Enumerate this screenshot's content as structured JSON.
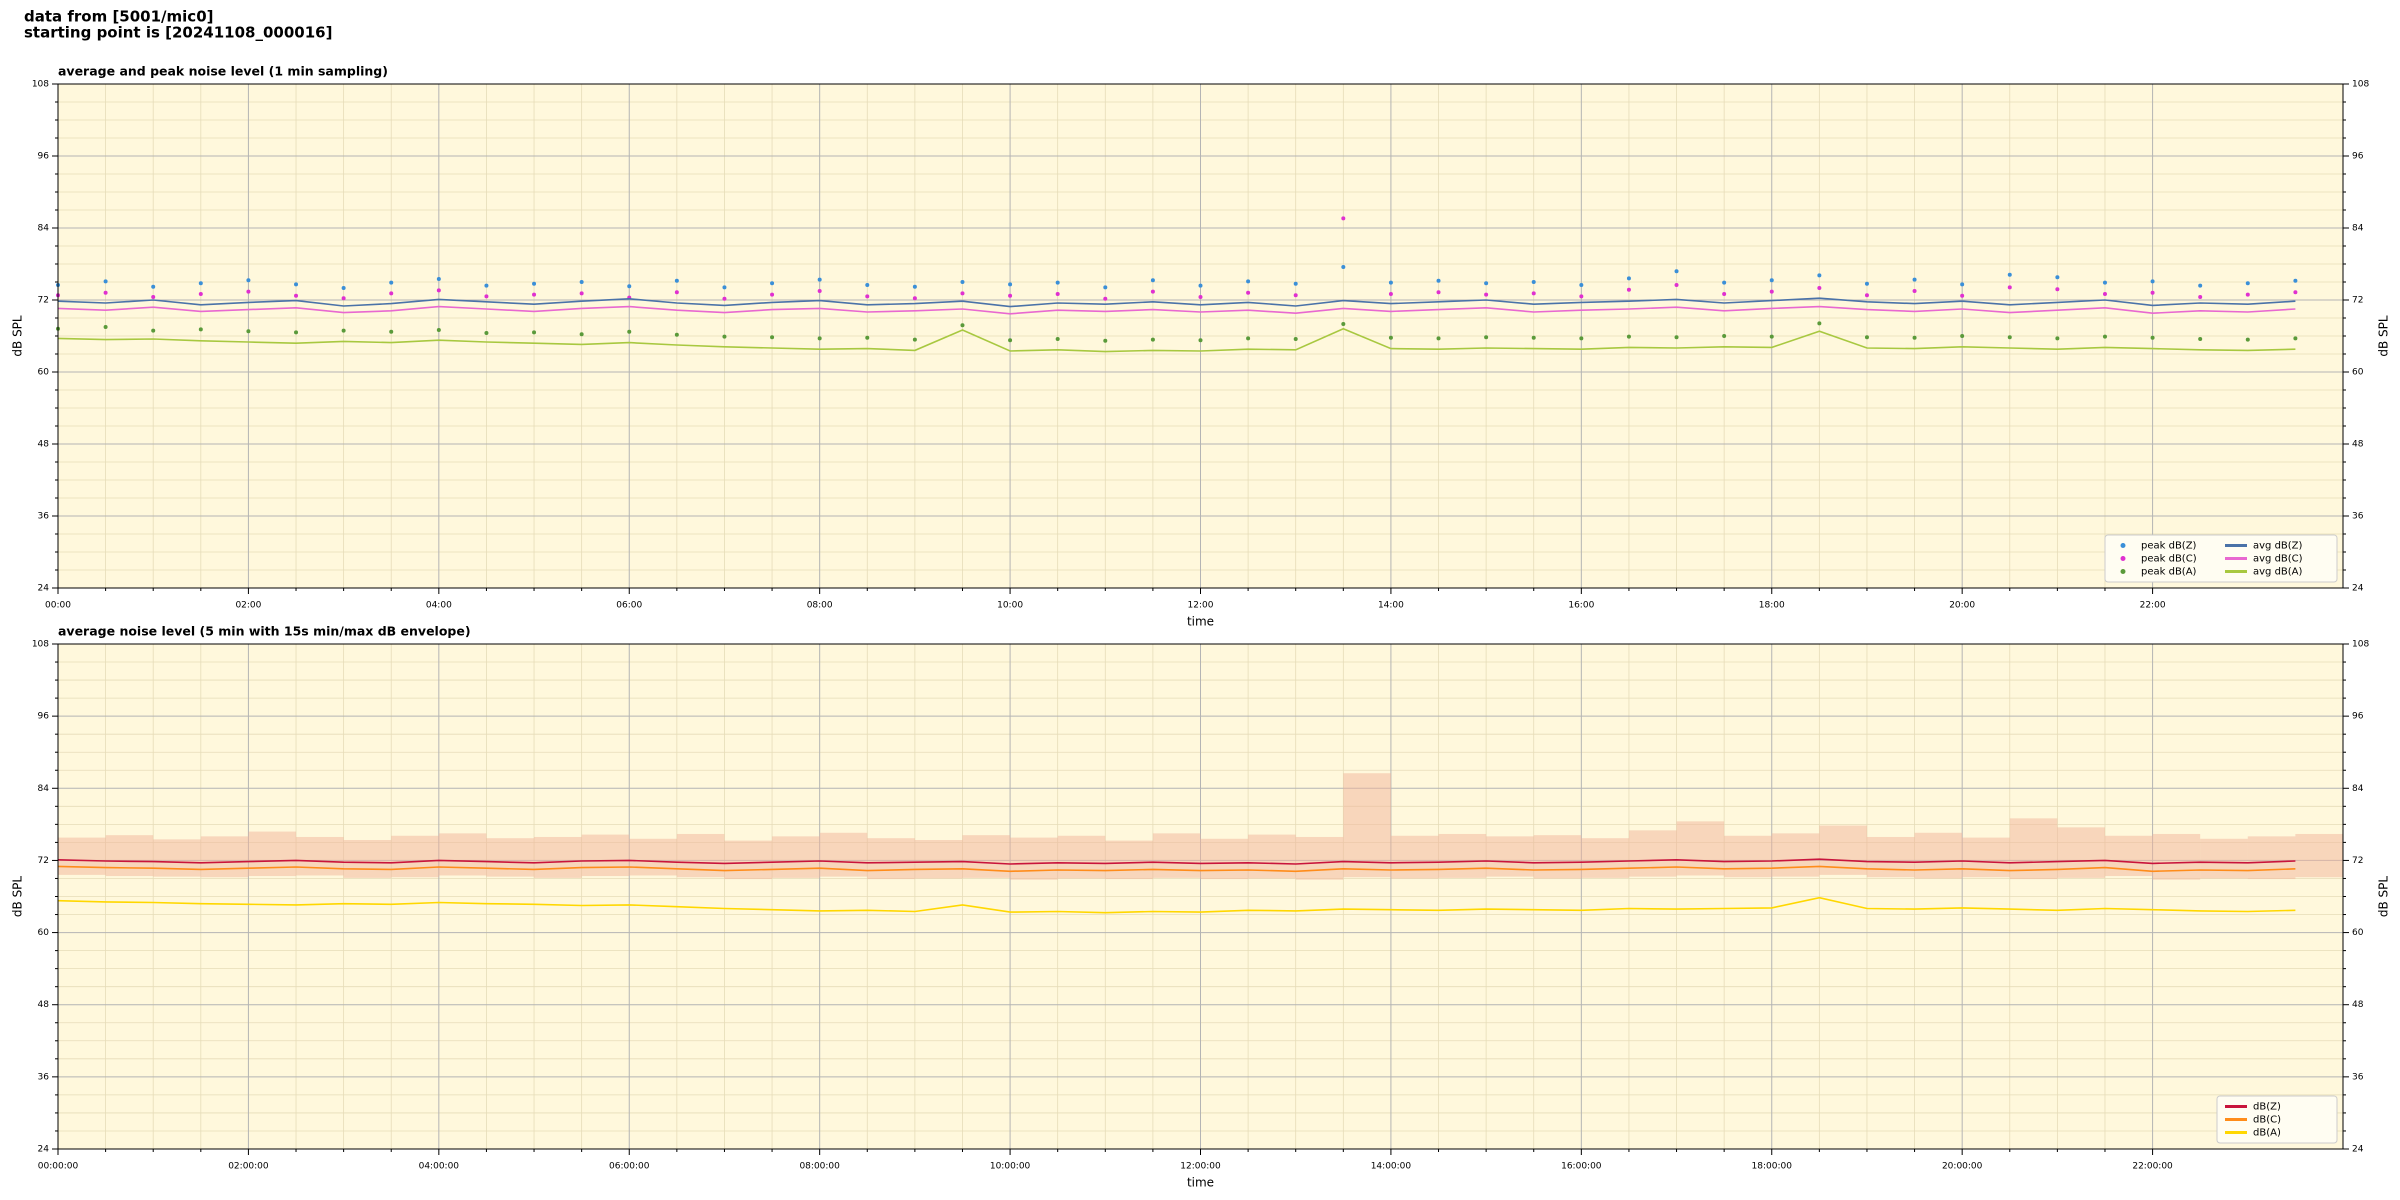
{
  "header": {
    "line1": "data from [5001/mic0]",
    "line2": "starting point is [20241108_000016]"
  },
  "chart_data": [
    {
      "type": "line",
      "title": "average and peak noise level (1 min sampling)",
      "xlabel": "time",
      "ylabel": "dB SPL",
      "facecolor": "#fff8dc",
      "grid": true,
      "legend": "lower right",
      "legend_columns": 2,
      "xlim": [
        0,
        24
      ],
      "ylim": [
        24,
        108
      ],
      "y2lim": [
        24,
        108
      ],
      "xticks": [
        {
          "value": 0,
          "label": "00:00"
        },
        {
          "value": 2,
          "label": "02:00"
        },
        {
          "value": 4,
          "label": "04:00"
        },
        {
          "value": 6,
          "label": "06:00"
        },
        {
          "value": 8,
          "label": "08:00"
        },
        {
          "value": 10,
          "label": "10:00"
        },
        {
          "value": 12,
          "label": "12:00"
        },
        {
          "value": 14,
          "label": "14:00"
        },
        {
          "value": 16,
          "label": "16:00"
        },
        {
          "value": 18,
          "label": "18:00"
        },
        {
          "value": 20,
          "label": "20:00"
        },
        {
          "value": 22,
          "label": "22:00"
        }
      ],
      "yticks": [
        24,
        36,
        48,
        60,
        72,
        84,
        96,
        108
      ],
      "y2ticks": [
        24,
        36,
        48,
        60,
        72,
        84,
        96,
        108
      ],
      "x": [
        0,
        0.5,
        1,
        1.5,
        2,
        2.5,
        3,
        3.5,
        4,
        4.5,
        5,
        5.5,
        6,
        6.5,
        7,
        7.5,
        8,
        8.5,
        9,
        9.5,
        10,
        10.5,
        11,
        11.5,
        12,
        12.5,
        13,
        13.5,
        14,
        14.5,
        15,
        15.5,
        16,
        16.5,
        17,
        17.5,
        18,
        18.5,
        19,
        19.5,
        20,
        20.5,
        21,
        21.5,
        22,
        22.5,
        23,
        23.5
      ],
      "series": [
        {
          "name": "peak dB(Z)",
          "style": "markers",
          "color": "#3a8fd8",
          "values": [
            74.5,
            75.1,
            74.2,
            74.8,
            75.3,
            74.6,
            74.0,
            74.9,
            75.5,
            74.4,
            74.7,
            75.0,
            74.3,
            75.2,
            74.1,
            74.8,
            75.4,
            74.5,
            74.2,
            75.0,
            74.6,
            74.9,
            74.1,
            75.3,
            74.4,
            75.1,
            74.7,
            77.5,
            74.9,
            75.2,
            74.8,
            75.0,
            74.5,
            75.6,
            76.8,
            74.9,
            75.3,
            76.1,
            74.7,
            75.4,
            74.6,
            76.2,
            75.8,
            74.9,
            75.1,
            74.4,
            74.8,
            75.2
          ]
        },
        {
          "name": "peak dB(C)",
          "style": "markers",
          "color": "#e030d0",
          "values": [
            72.8,
            73.2,
            72.5,
            73.0,
            73.4,
            72.7,
            72.3,
            73.1,
            73.6,
            72.6,
            72.9,
            73.1,
            72.4,
            73.3,
            72.2,
            72.9,
            73.5,
            72.6,
            72.3,
            73.1,
            72.7,
            73.0,
            72.2,
            73.4,
            72.5,
            73.2,
            72.8,
            85.6,
            73.0,
            73.3,
            72.9,
            73.1,
            72.6,
            73.7,
            74.5,
            73.0,
            73.4,
            74.0,
            72.8,
            73.5,
            72.7,
            74.1,
            73.8,
            73.0,
            73.2,
            72.5,
            72.9,
            73.3
          ]
        },
        {
          "name": "peak dB(A)",
          "style": "markers",
          "color": "#5a9a3a",
          "values": [
            67.2,
            67.5,
            66.9,
            67.1,
            66.8,
            66.6,
            66.9,
            66.7,
            67.0,
            66.5,
            66.6,
            66.3,
            66.7,
            66.2,
            65.9,
            65.8,
            65.6,
            65.7,
            65.4,
            67.8,
            65.3,
            65.5,
            65.2,
            65.4,
            65.3,
            65.6,
            65.5,
            68.0,
            65.7,
            65.6,
            65.8,
            65.7,
            65.6,
            65.9,
            65.8,
            66.0,
            65.9,
            68.1,
            65.8,
            65.7,
            66.0,
            65.8,
            65.6,
            65.9,
            65.7,
            65.5,
            65.4,
            65.6
          ]
        },
        {
          "name": "avg dB(Z)",
          "style": "line",
          "color": "#4a72a8",
          "values": [
            71.8,
            71.5,
            72.0,
            71.2,
            71.6,
            71.9,
            71.0,
            71.4,
            72.1,
            71.7,
            71.3,
            71.8,
            72.2,
            71.5,
            71.1,
            71.6,
            71.9,
            71.2,
            71.4,
            71.8,
            70.9,
            71.5,
            71.3,
            71.7,
            71.2,
            71.6,
            71.0,
            71.9,
            71.4,
            71.7,
            72.0,
            71.3,
            71.6,
            71.8,
            72.1,
            71.5,
            71.9,
            72.3,
            71.7,
            71.4,
            71.8,
            71.2,
            71.6,
            72.0,
            71.1,
            71.5,
            71.3,
            71.8
          ]
        },
        {
          "name": "avg dB(C)",
          "style": "line",
          "color": "#e868d0",
          "values": [
            70.6,
            70.3,
            70.8,
            70.1,
            70.4,
            70.7,
            69.9,
            70.2,
            70.9,
            70.5,
            70.1,
            70.6,
            70.9,
            70.3,
            69.9,
            70.4,
            70.6,
            70.0,
            70.2,
            70.5,
            69.7,
            70.3,
            70.1,
            70.4,
            70.0,
            70.3,
            69.8,
            70.6,
            70.1,
            70.4,
            70.7,
            70.0,
            70.3,
            70.5,
            70.8,
            70.2,
            70.6,
            70.9,
            70.4,
            70.1,
            70.5,
            69.9,
            70.3,
            70.7,
            69.8,
            70.2,
            70.0,
            70.5
          ]
        },
        {
          "name": "avg dB(A)",
          "style": "line",
          "color": "#a8c840",
          "values": [
            65.6,
            65.4,
            65.5,
            65.2,
            65.0,
            64.8,
            65.1,
            64.9,
            65.3,
            65.0,
            64.8,
            64.6,
            64.9,
            64.5,
            64.2,
            64.0,
            63.8,
            63.9,
            63.6,
            67.0,
            63.5,
            63.7,
            63.4,
            63.6,
            63.5,
            63.8,
            63.7,
            67.2,
            63.9,
            63.8,
            64.0,
            63.9,
            63.8,
            64.1,
            64.0,
            64.2,
            64.1,
            66.8,
            64.0,
            63.9,
            64.2,
            64.0,
            63.8,
            64.1,
            63.9,
            63.7,
            63.6,
            63.8
          ]
        }
      ]
    },
    {
      "type": "line",
      "title": "average noise level (5 min with 15s min/max dB envelope)",
      "xlabel": "time",
      "ylabel": "dB SPL",
      "facecolor": "#fff8dc",
      "grid": true,
      "legend": "lower right",
      "legend_columns": 1,
      "xlim": [
        0,
        24
      ],
      "ylim": [
        24,
        108
      ],
      "y2lim": [
        24,
        108
      ],
      "xticks": [
        {
          "value": 0,
          "label": "00:00:00"
        },
        {
          "value": 2,
          "label": "02:00:00"
        },
        {
          "value": 4,
          "label": "04:00:00"
        },
        {
          "value": 6,
          "label": "06:00:00"
        },
        {
          "value": 8,
          "label": "08:00:00"
        },
        {
          "value": 10,
          "label": "10:00:00"
        },
        {
          "value": 12,
          "label": "12:00:00"
        },
        {
          "value": 14,
          "label": "14:00:00"
        },
        {
          "value": 16,
          "label": "16:00:00"
        },
        {
          "value": 18,
          "label": "18:00:00"
        },
        {
          "value": 20,
          "label": "20:00:00"
        },
        {
          "value": 22,
          "label": "22:00:00"
        }
      ],
      "yticks": [
        24,
        36,
        48,
        60,
        72,
        84,
        96,
        108
      ],
      "y2ticks": [
        24,
        36,
        48,
        60,
        72,
        84,
        96,
        108
      ],
      "x": [
        0,
        0.5,
        1,
        1.5,
        2,
        2.5,
        3,
        3.5,
        4,
        4.5,
        5,
        5.5,
        6,
        6.5,
        7,
        7.5,
        8,
        8.5,
        9,
        9.5,
        10,
        10.5,
        11,
        11.5,
        12,
        12.5,
        13,
        13.5,
        14,
        14.5,
        15,
        15.5,
        16,
        16.5,
        17,
        17.5,
        18,
        18.5,
        19,
        19.5,
        20,
        20.5,
        21,
        21.5,
        22,
        22.5,
        23,
        23.5
      ],
      "envelope": {
        "color": "#f2b49a",
        "lower": [
          69.6,
          69.4,
          69.3,
          69.2,
          69.4,
          69.5,
          69.1,
          69.2,
          69.5,
          69.3,
          69.1,
          69.4,
          69.5,
          69.2,
          68.9,
          69.1,
          69.3,
          68.9,
          69.0,
          69.1,
          68.8,
          69.0,
          68.9,
          69.1,
          68.9,
          69.0,
          68.8,
          69.2,
          69.0,
          69.1,
          69.3,
          69.0,
          69.1,
          69.3,
          69.5,
          69.2,
          69.3,
          69.6,
          69.2,
          69.0,
          69.2,
          68.9,
          69.1,
          69.4,
          68.8,
          69.0,
          68.9,
          69.2
        ],
        "upper": [
          75.8,
          76.2,
          75.5,
          76.0,
          76.8,
          75.9,
          75.4,
          76.1,
          76.5,
          75.7,
          75.9,
          76.3,
          75.6,
          76.4,
          75.3,
          76.0,
          76.6,
          75.7,
          75.4,
          76.2,
          75.8,
          76.1,
          75.3,
          76.5,
          75.6,
          76.3,
          75.9,
          86.5,
          76.1,
          76.4,
          76.0,
          76.2,
          75.7,
          77.0,
          78.5,
          76.1,
          76.5,
          77.8,
          75.9,
          76.6,
          75.8,
          79.0,
          77.5,
          76.1,
          76.4,
          75.6,
          76.0,
          76.4
        ]
      },
      "series": [
        {
          "name": "dB(Z)",
          "style": "line",
          "color": "#c8143c",
          "values": [
            72.1,
            71.9,
            71.8,
            71.6,
            71.8,
            72.0,
            71.7,
            71.6,
            72.0,
            71.8,
            71.6,
            71.9,
            72.0,
            71.7,
            71.5,
            71.7,
            71.9,
            71.6,
            71.7,
            71.8,
            71.4,
            71.6,
            71.5,
            71.7,
            71.5,
            71.6,
            71.4,
            71.8,
            71.6,
            71.7,
            71.9,
            71.6,
            71.7,
            71.9,
            72.1,
            71.8,
            71.9,
            72.2,
            71.8,
            71.7,
            71.9,
            71.6,
            71.8,
            72.0,
            71.5,
            71.7,
            71.6,
            71.9
          ]
        },
        {
          "name": "dB(C)",
          "style": "line",
          "color": "#ff8c1a",
          "values": [
            71.0,
            70.8,
            70.7,
            70.5,
            70.7,
            70.9,
            70.6,
            70.5,
            70.9,
            70.7,
            70.5,
            70.8,
            70.9,
            70.6,
            70.3,
            70.5,
            70.7,
            70.3,
            70.5,
            70.6,
            70.2,
            70.4,
            70.3,
            70.5,
            70.3,
            70.4,
            70.2,
            70.6,
            70.4,
            70.5,
            70.7,
            70.4,
            70.5,
            70.7,
            70.9,
            70.6,
            70.7,
            71.0,
            70.6,
            70.4,
            70.6,
            70.3,
            70.5,
            70.8,
            70.2,
            70.4,
            70.3,
            70.6
          ]
        },
        {
          "name": "dB(A)",
          "style": "line",
          "color": "#ffd700",
          "values": [
            65.3,
            65.1,
            65.0,
            64.8,
            64.7,
            64.6,
            64.8,
            64.7,
            65.0,
            64.8,
            64.7,
            64.5,
            64.6,
            64.3,
            64.0,
            63.8,
            63.6,
            63.7,
            63.5,
            64.6,
            63.4,
            63.5,
            63.3,
            63.5,
            63.4,
            63.7,
            63.6,
            63.9,
            63.8,
            63.7,
            63.9,
            63.8,
            63.7,
            64.0,
            63.9,
            64.0,
            64.1,
            65.8,
            64.0,
            63.9,
            64.1,
            63.9,
            63.7,
            64.0,
            63.8,
            63.6,
            63.5,
            63.7
          ]
        }
      ]
    }
  ]
}
